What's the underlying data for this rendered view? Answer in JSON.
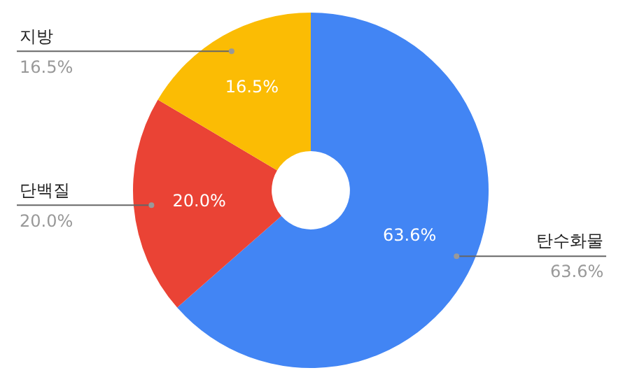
{
  "chart_data": {
    "type": "donut",
    "categories": [
      "탄수화물",
      "단백질",
      "지방"
    ],
    "values": [
      63.6,
      20.0,
      16.5
    ],
    "value_labels": [
      "63.6%",
      "20.0%",
      "16.5%"
    ],
    "colors": [
      "#4285f4",
      "#ea4335",
      "#fbbc04"
    ],
    "legend": false
  }
}
